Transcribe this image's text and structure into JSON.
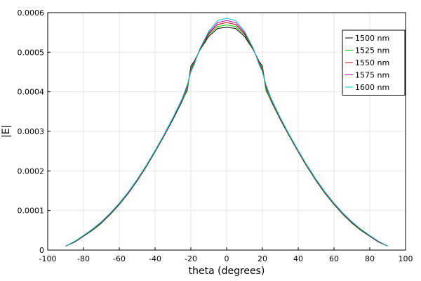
{
  "chart_data": {
    "type": "line",
    "title": "",
    "xlabel": "theta (degrees)",
    "ylabel": "|E|",
    "xlim": [
      -100,
      100
    ],
    "ylim": [
      0,
      0.0006
    ],
    "grid": true,
    "legend_position": "top-right",
    "x_ticks": [
      -100,
      -80,
      -60,
      -40,
      -20,
      0,
      20,
      40,
      60,
      80,
      100
    ],
    "x_tick_labels": [
      "-100",
      "-80",
      "-60",
      "-40",
      "-20",
      "0",
      "20",
      "40",
      "60",
      "80",
      "100"
    ],
    "y_ticks": [
      0,
      0.0001,
      0.0002,
      0.0003,
      0.0004,
      0.0005,
      0.0006
    ],
    "y_tick_labels": [
      "0",
      "0.0001",
      "0.0002",
      "0.0003",
      "0.0004",
      "0.0005",
      "0.0006"
    ],
    "x": [
      -90,
      -85,
      -80,
      -75,
      -70,
      -65,
      -60,
      -55,
      -50,
      -45,
      -40,
      -35,
      -30,
      -25,
      -22,
      -20,
      -18,
      -15,
      -10,
      -5,
      0,
      5,
      10,
      15,
      18,
      20,
      22,
      25,
      30,
      35,
      40,
      45,
      50,
      55,
      60,
      65,
      70,
      75,
      80,
      85,
      90
    ],
    "series": [
      {
        "name": "1500 nm",
        "color": "#000000",
        "values": [
          1e-05,
          2e-05,
          3.5e-05,
          5e-05,
          6.8e-05,
          9e-05,
          0.000115,
          0.000143,
          0.000175,
          0.00021,
          0.000248,
          0.000288,
          0.00033,
          0.000375,
          0.000405,
          0.000465,
          0.000478,
          0.000505,
          0.00054,
          0.00056,
          0.000563,
          0.00056,
          0.00054,
          0.000505,
          0.000478,
          0.000465,
          0.000405,
          0.000375,
          0.00033,
          0.000288,
          0.000248,
          0.00021,
          0.000175,
          0.000143,
          0.000115,
          9e-05,
          6.8e-05,
          5e-05,
          3.5e-05,
          2e-05,
          1e-05
        ]
      },
      {
        "name": "1525 nm",
        "color": "#00c800",
        "values": [
          1e-05,
          2.1e-05,
          3.6e-05,
          5.1e-05,
          6.9e-05,
          9.1e-05,
          0.000116,
          0.000144,
          0.000176,
          0.000211,
          0.000249,
          0.000289,
          0.000332,
          0.000377,
          0.000402,
          0.00046,
          0.000476,
          0.000506,
          0.000544,
          0.000565,
          0.000569,
          0.000565,
          0.000544,
          0.000506,
          0.000476,
          0.00046,
          0.000402,
          0.000377,
          0.000332,
          0.000289,
          0.000249,
          0.000211,
          0.000176,
          0.000144,
          0.000116,
          9.1e-05,
          6.9e-05,
          5.1e-05,
          3.6e-05,
          2.1e-05,
          1e-05
        ]
      },
      {
        "name": "1550 nm",
        "color": "#c80000",
        "values": [
          1e-05,
          2.1e-05,
          3.6e-05,
          5.2e-05,
          7e-05,
          9.2e-05,
          0.000117,
          0.000145,
          0.000177,
          0.000212,
          0.00025,
          0.00029,
          0.000333,
          0.000379,
          0.000412,
          0.000455,
          0.000474,
          0.000507,
          0.000547,
          0.00057,
          0.000575,
          0.00057,
          0.000547,
          0.000507,
          0.000474,
          0.000455,
          0.000412,
          0.000379,
          0.000333,
          0.00029,
          0.00025,
          0.000212,
          0.000177,
          0.000145,
          0.000117,
          9.2e-05,
          7e-05,
          5.2e-05,
          3.6e-05,
          2.1e-05,
          1e-05
        ]
      },
      {
        "name": "1575 nm",
        "color": "#c800c8",
        "values": [
          1e-05,
          2.2e-05,
          3.7e-05,
          5.3e-05,
          7.1e-05,
          9.3e-05,
          0.000118,
          0.000146,
          0.000178,
          0.000213,
          0.000251,
          0.000291,
          0.000334,
          0.00038,
          0.000415,
          0.000452,
          0.000472,
          0.000508,
          0.00055,
          0.000575,
          0.00058,
          0.000575,
          0.00055,
          0.000508,
          0.000472,
          0.000452,
          0.000415,
          0.00038,
          0.000334,
          0.000291,
          0.000251,
          0.000213,
          0.000178,
          0.000146,
          0.000118,
          9.3e-05,
          7.1e-05,
          5.3e-05,
          3.7e-05,
          2.2e-05,
          1e-05
        ]
      },
      {
        "name": "1600 nm",
        "color": "#00c8c8",
        "values": [
          1e-05,
          2.2e-05,
          3.7e-05,
          5.3e-05,
          7.2e-05,
          9.4e-05,
          0.000119,
          0.000147,
          0.000179,
          0.000214,
          0.000252,
          0.000292,
          0.000335,
          0.000382,
          0.000418,
          0.00045,
          0.00047,
          0.000509,
          0.000553,
          0.00058,
          0.000586,
          0.00058,
          0.000553,
          0.000509,
          0.00047,
          0.00045,
          0.000418,
          0.000382,
          0.000335,
          0.000292,
          0.000252,
          0.000214,
          0.000179,
          0.000147,
          0.000119,
          9.4e-05,
          7.2e-05,
          5.3e-05,
          3.7e-05,
          2.2e-05,
          1e-05
        ]
      }
    ]
  }
}
